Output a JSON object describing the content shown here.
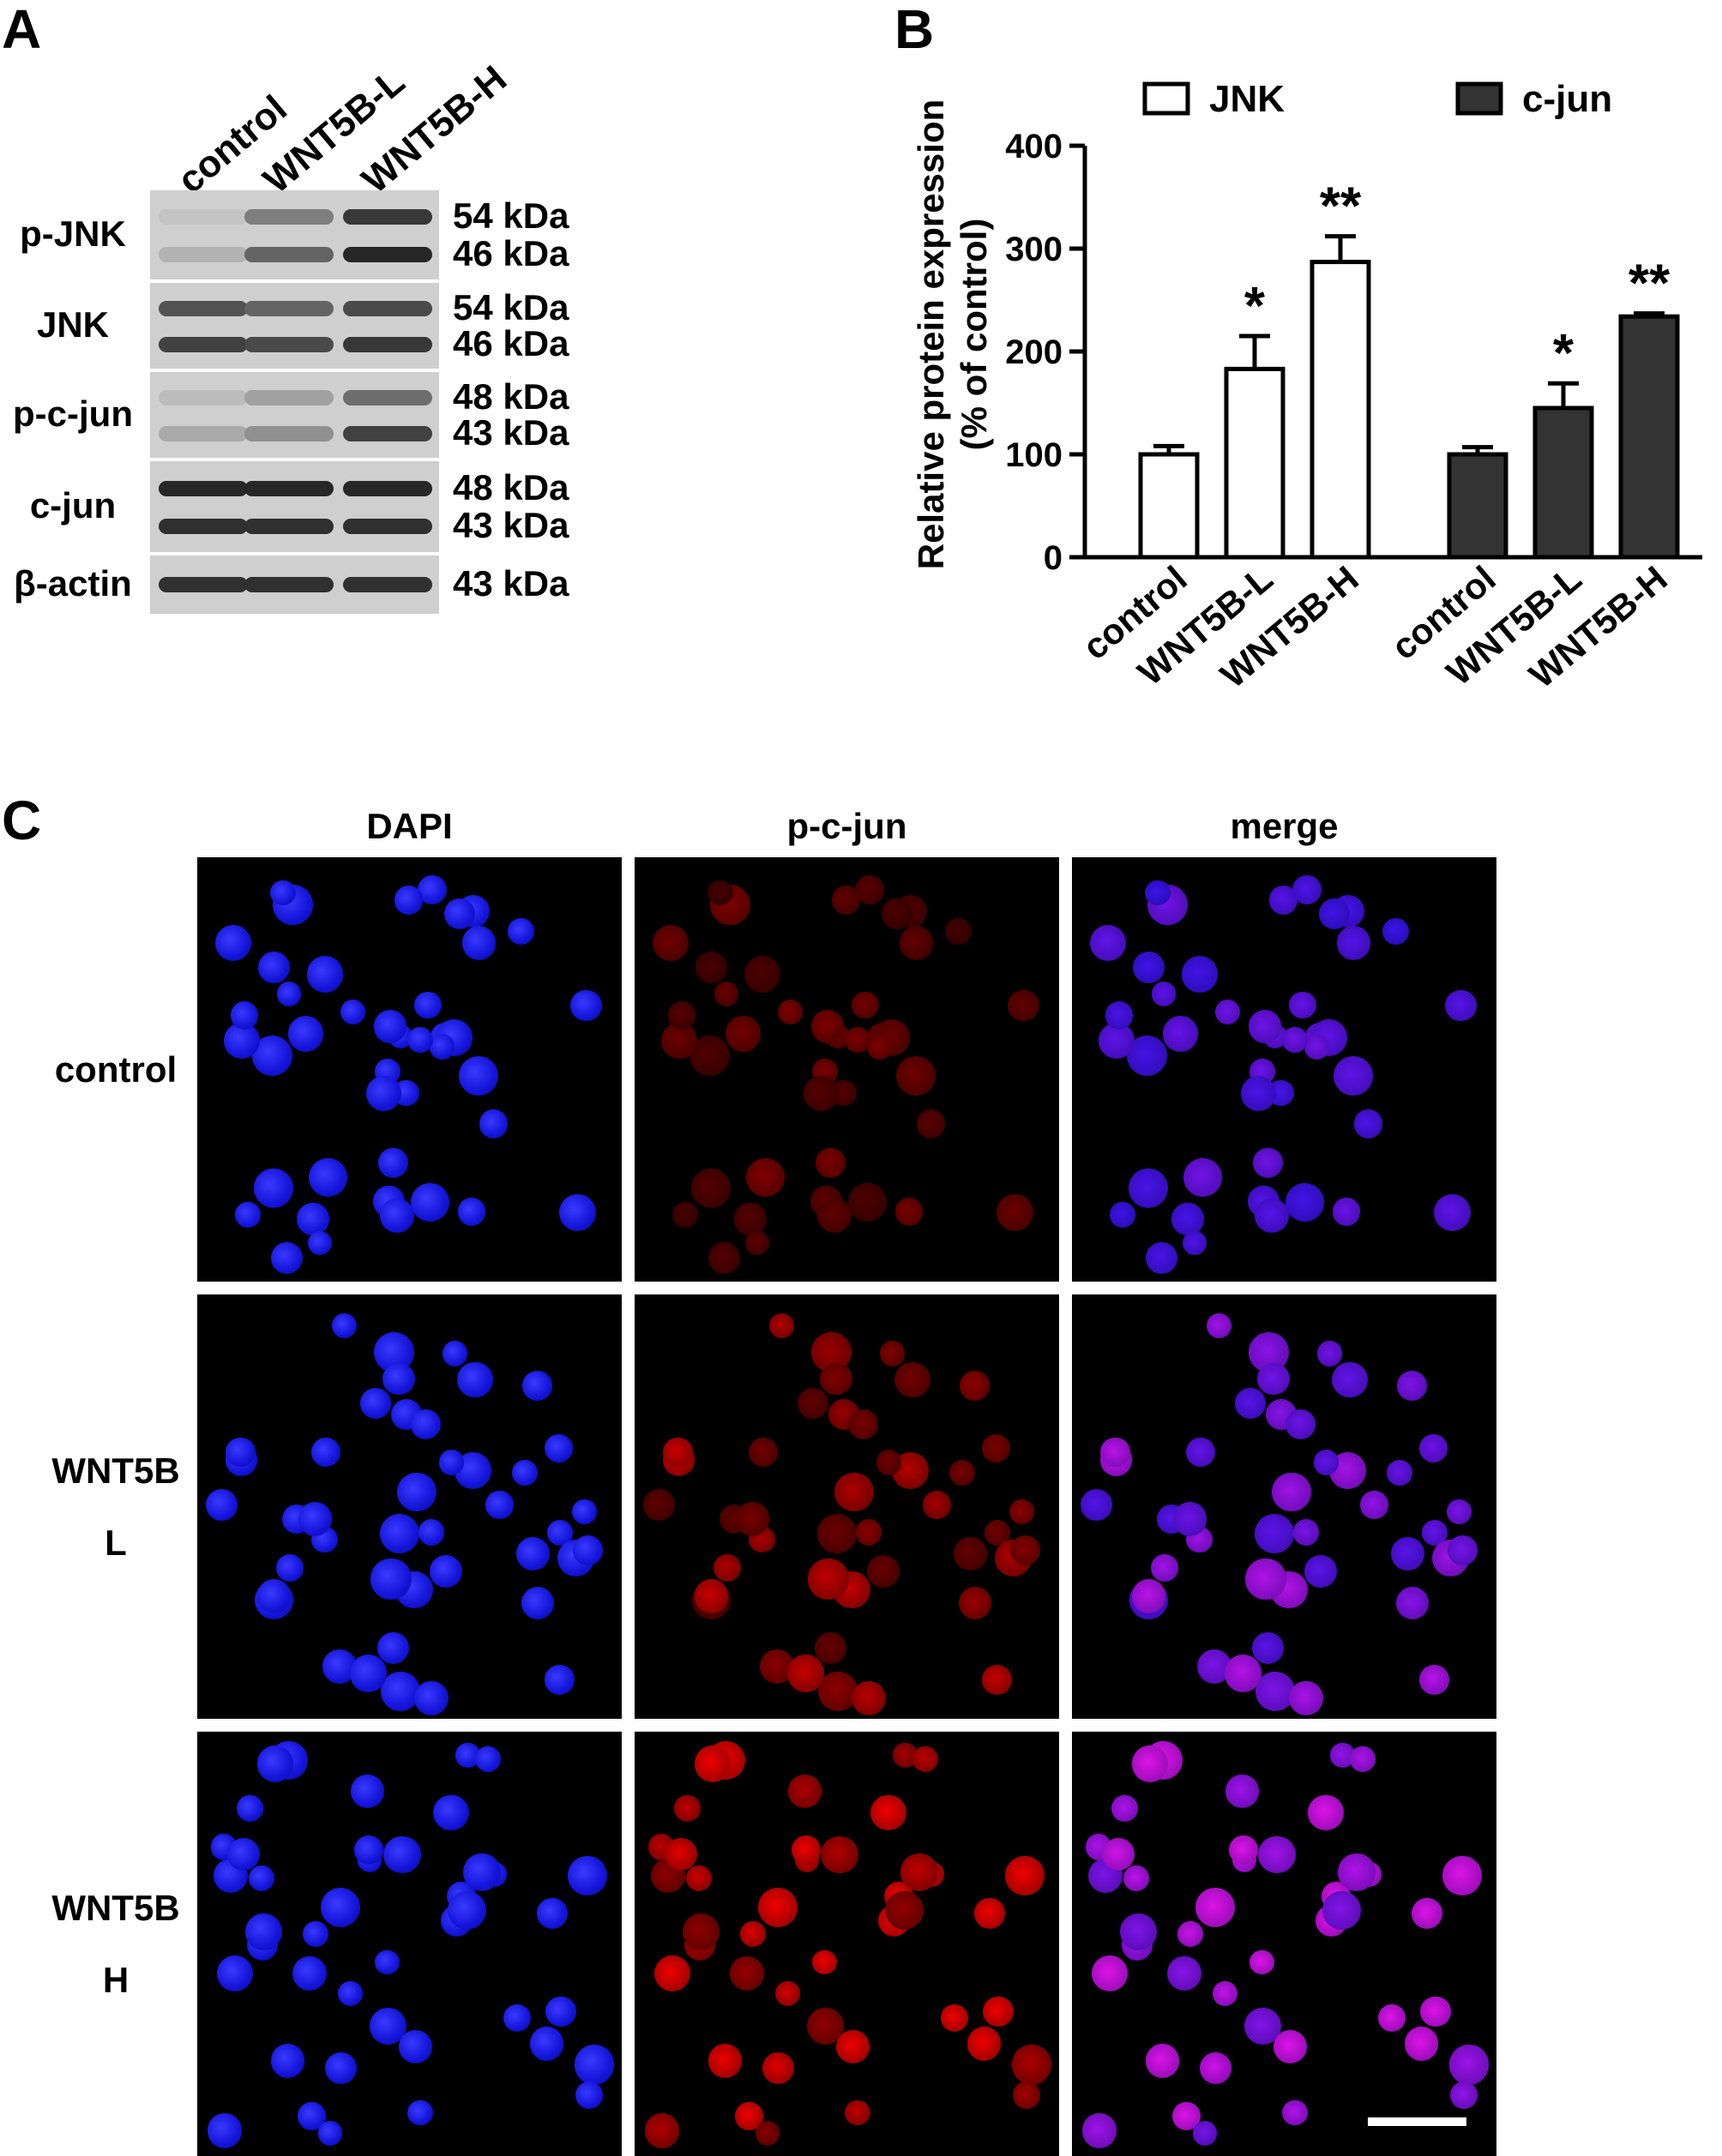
{
  "panelA": {
    "letter": "A",
    "lanes": [
      "control",
      "WNT5B-L",
      "WNT5B-H"
    ],
    "rows": [
      {
        "name": "p-JNK",
        "sizes": [
          "54 kDa",
          "46 kDa"
        ],
        "intensity": [
          [
            0.05,
            0.45,
            0.85
          ],
          [
            0.15,
            0.6,
            0.95
          ]
        ]
      },
      {
        "name": "JNK",
        "sizes": [
          "54 kDa",
          "46 kDa"
        ],
        "intensity": [
          [
            0.7,
            0.6,
            0.75
          ],
          [
            0.8,
            0.75,
            0.85
          ]
        ]
      },
      {
        "name": "p-c-jun",
        "sizes": [
          "48 kDa",
          "43 kDa"
        ],
        "intensity": [
          [
            0.1,
            0.25,
            0.55
          ],
          [
            0.2,
            0.35,
            0.8
          ]
        ]
      },
      {
        "name": "c-jun",
        "sizes": [
          "48 kDa",
          "43 kDa"
        ],
        "intensity": [
          [
            0.95,
            0.95,
            0.95
          ],
          [
            0.9,
            0.9,
            0.9
          ]
        ]
      },
      {
        "name": "β-actin",
        "sizes": [
          "43 kDa"
        ],
        "intensity": [
          [
            0.9,
            0.9,
            0.9
          ]
        ]
      }
    ]
  },
  "panelB": {
    "letter": "B",
    "chart_data": {
      "type": "bar",
      "ylabel": [
        "Relative protein expression",
        "(% of control)"
      ],
      "ylim": [
        0,
        400
      ],
      "yticks": [
        0,
        100,
        200,
        300,
        400
      ],
      "categories": [
        "control",
        "WNT5B-L",
        "WNT5B-H"
      ],
      "series": [
        {
          "name": "JNK",
          "values": [
            100,
            183,
            287
          ],
          "errors": [
            8,
            32,
            25
          ],
          "significance": [
            "",
            "*",
            "**"
          ],
          "color": "#ffffff"
        },
        {
          "name": "c-jun",
          "values": [
            100,
            145,
            234
          ],
          "errors": [
            7,
            24,
            3
          ],
          "significance": [
            "",
            "*",
            "**"
          ],
          "color": "#333333"
        }
      ],
      "legend": "top"
    }
  },
  "panelC": {
    "letter": "C",
    "columns": [
      "DAPI",
      "p-c-jun",
      "merge"
    ],
    "rows": [
      {
        "label": [
          "control"
        ],
        "red": 0.3
      },
      {
        "label": [
          "WNT5B",
          "L"
        ],
        "red": 0.55
      },
      {
        "label": [
          "WNT5B",
          "H"
        ],
        "red": 0.9
      }
    ]
  }
}
